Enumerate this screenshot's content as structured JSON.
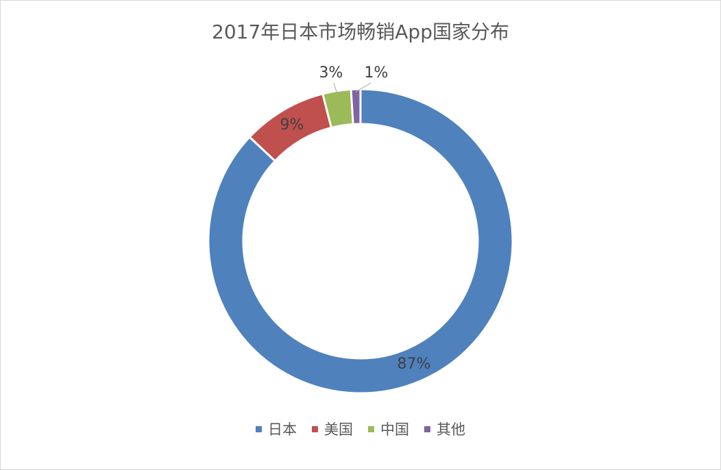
{
  "chart_data": {
    "type": "pie",
    "variant": "doughnut",
    "title": "2017年日本市场畅销App国家分布",
    "categories": [
      "日本",
      "美国",
      "中国",
      "其他"
    ],
    "values": [
      87,
      9,
      3,
      1
    ],
    "labels": [
      "87%",
      "9%",
      "3%",
      "1%"
    ],
    "colors": [
      "#4f81bd",
      "#c0504d",
      "#9bbb59",
      "#8064a2"
    ],
    "legend_position": "bottom"
  }
}
